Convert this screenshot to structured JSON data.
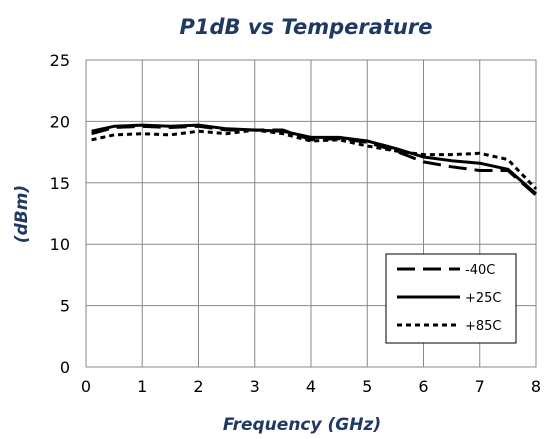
{
  "chart_data": {
    "type": "line",
    "title": "P1dB vs Temperature",
    "xlabel": "Frequency (GHz)",
    "ylabel": "(dBm)",
    "xlim": [
      0,
      8
    ],
    "ylim": [
      0,
      25
    ],
    "xticks": [
      "0",
      "1",
      "2",
      "3",
      "4",
      "5",
      "6",
      "7",
      "8"
    ],
    "yticks": [
      "0",
      "5",
      "10",
      "15",
      "20",
      "25"
    ],
    "grid": true,
    "legend_position": "bottom-right",
    "series": [
      {
        "name": "-40C",
        "style": "long-dash",
        "x": [
          0.1,
          0.5,
          1,
          1.5,
          2,
          2.5,
          3,
          3.5,
          4,
          4.5,
          5,
          5.5,
          6,
          6.5,
          7,
          7.5,
          8
        ],
        "y": [
          19.0,
          19.5,
          19.6,
          19.5,
          19.6,
          19.3,
          19.3,
          19.3,
          18.5,
          18.6,
          18.3,
          17.6,
          16.7,
          16.3,
          16.0,
          16.0,
          14.0
        ]
      },
      {
        "name": "+25C",
        "style": "solid",
        "x": [
          0.1,
          0.5,
          1,
          1.5,
          2,
          2.5,
          3,
          3.5,
          4,
          4.5,
          5,
          5.5,
          6,
          6.5,
          7,
          7.5,
          8
        ],
        "y": [
          19.2,
          19.6,
          19.7,
          19.6,
          19.7,
          19.4,
          19.3,
          19.2,
          18.7,
          18.7,
          18.4,
          17.8,
          17.1,
          16.8,
          16.6,
          16.1,
          14.1
        ]
      },
      {
        "name": "+85C",
        "style": "short-dash",
        "x": [
          0.1,
          0.5,
          1,
          1.5,
          2,
          2.5,
          3,
          3.5,
          4,
          4.5,
          5,
          5.5,
          6,
          6.5,
          7,
          7.5,
          8
        ],
        "y": [
          18.5,
          18.9,
          19.0,
          18.9,
          19.2,
          19.0,
          19.3,
          19.0,
          18.4,
          18.5,
          18.0,
          17.6,
          17.3,
          17.3,
          17.4,
          16.9,
          14.5
        ]
      }
    ]
  }
}
